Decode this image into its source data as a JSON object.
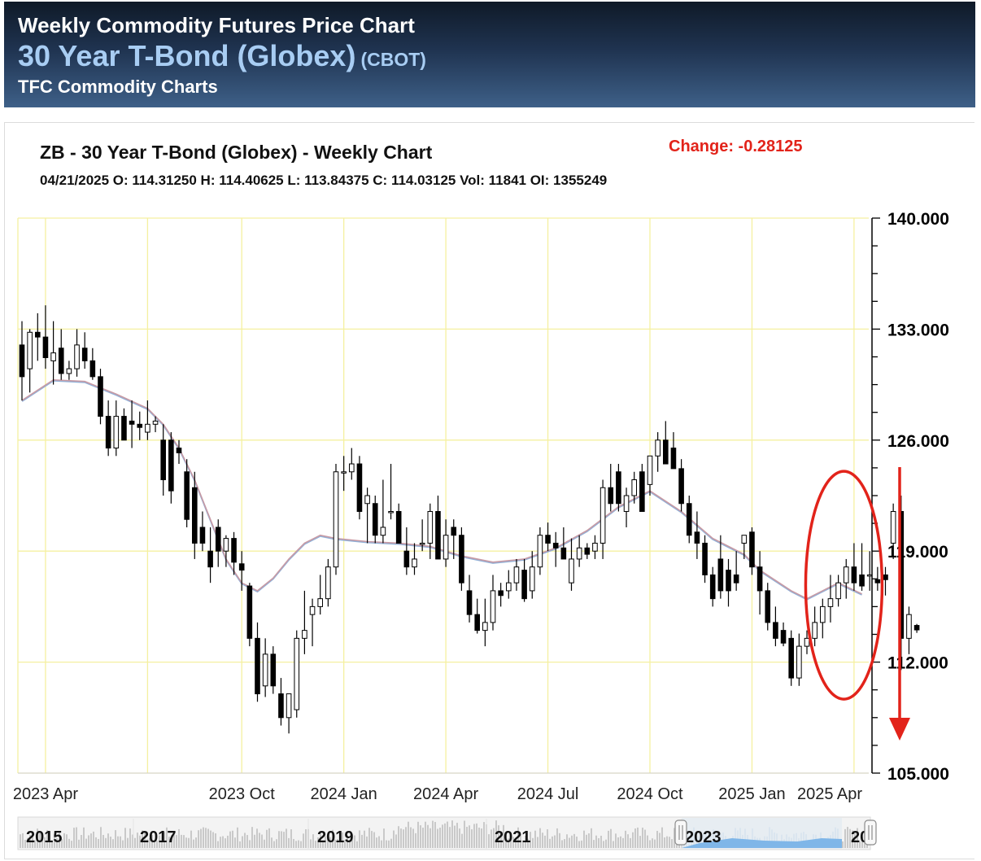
{
  "header": {
    "line1": "Weekly Commodity Futures Price Chart",
    "line2": "30 Year T-Bond (Globex)",
    "exchange": "(CBOT)",
    "line3": "TFC Commodity Charts"
  },
  "chart_title": "ZB - 30 Year T-Bond (Globex) - Weekly Chart",
  "ohlc_line": "04/21/2025 O: 114.31250 H: 114.40625 L: 113.84375 C: 114.03125 Vol: 11841 OI: 1355249",
  "change_label": "Change: -0.28125",
  "colors": {
    "grid": "#f5f0a0",
    "ma_blue": "#8fb0d8",
    "ma_pink": "#c89aa4",
    "annotation": "#e2231a",
    "bull": "#ffffff",
    "bear": "#000000"
  },
  "chart_data": {
    "type": "candlestick",
    "title": "ZB - 30 Year T-Bond (Globex) - Weekly Chart",
    "ylim": [
      105,
      140
    ],
    "y_ticks": [
      "140.000",
      "133.000",
      "126.000",
      "119.000",
      "112.000",
      "105.000"
    ],
    "y_tick_values": [
      140,
      133,
      126,
      119,
      112,
      105
    ],
    "x_ticks": [
      {
        "label": "2023 Apr",
        "week": 3
      },
      {
        "label": "2023 Oct",
        "week": 28
      },
      {
        "label": "2024 Jan",
        "week": 41
      },
      {
        "label": "2024 Apr",
        "week": 54
      },
      {
        "label": "2024 Jul",
        "week": 67
      },
      {
        "label": "2024 Oct",
        "week": 80
      },
      {
        "label": "2025 Jan",
        "week": 93
      },
      {
        "label": "2025 Apr",
        "week": 106
      }
    ],
    "extra_grid_weeks": [
      16
    ],
    "grid": true,
    "moving_average": [
      [
        0,
        128.5
      ],
      [
        4,
        129.8
      ],
      [
        8,
        129.7
      ],
      [
        12,
        128.9
      ],
      [
        16,
        128.0
      ],
      [
        18,
        127.0
      ],
      [
        20,
        125.5
      ],
      [
        22,
        123.5
      ],
      [
        24,
        121.0
      ],
      [
        26,
        118.5
      ],
      [
        28,
        117.0
      ],
      [
        30,
        116.5
      ],
      [
        32,
        117.3
      ],
      [
        34,
        118.5
      ],
      [
        36,
        119.5
      ],
      [
        38,
        120.0
      ],
      [
        40,
        119.8
      ],
      [
        44,
        119.6
      ],
      [
        48,
        119.5
      ],
      [
        52,
        119.3
      ],
      [
        56,
        118.7
      ],
      [
        60,
        118.3
      ],
      [
        64,
        118.5
      ],
      [
        68,
        119.2
      ],
      [
        72,
        120.3
      ],
      [
        76,
        121.8
      ],
      [
        80,
        122.8
      ],
      [
        84,
        121.5
      ],
      [
        88,
        119.8
      ],
      [
        92,
        118.8
      ],
      [
        94,
        117.8
      ],
      [
        98,
        116.5
      ],
      [
        100,
        116.0
      ],
      [
        102,
        116.5
      ],
      [
        104,
        117.0
      ],
      [
        107,
        116.3
      ]
    ],
    "candles": [
      [
        132,
        133.5,
        128.5,
        130
      ],
      [
        130.5,
        133,
        129,
        132.8
      ],
      [
        132.8,
        134,
        131,
        132.5
      ],
      [
        132.5,
        134.5,
        130.5,
        131.2
      ],
      [
        131,
        133.5,
        129.5,
        131.5
      ],
      [
        131.8,
        133,
        129.8,
        130.2
      ],
      [
        130.2,
        131,
        129.8,
        130.5
      ],
      [
        130.5,
        133,
        130,
        132
      ],
      [
        131.8,
        132.8,
        130.5,
        131
      ],
      [
        131,
        131.8,
        129.8,
        130
      ],
      [
        130,
        130.5,
        127,
        127.5
      ],
      [
        127.5,
        128.5,
        125,
        125.5
      ],
      [
        125.5,
        128.5,
        125,
        127.5
      ],
      [
        127.5,
        128,
        126,
        126
      ],
      [
        127.2,
        128.5,
        125.5,
        127
      ],
      [
        127,
        127.8,
        126,
        126.8
      ],
      [
        126.5,
        128.5,
        126,
        127
      ],
      [
        127,
        127.5,
        126.5,
        127.2
      ],
      [
        126,
        127,
        122.5,
        123.5
      ],
      [
        126,
        126.5,
        122,
        122.8
      ],
      [
        125.5,
        126,
        124.5,
        125.2
      ],
      [
        124,
        124.8,
        120.5,
        121
      ],
      [
        123,
        124,
        118.5,
        119.5
      ],
      [
        120.5,
        121.5,
        119,
        119.5
      ],
      [
        119,
        120.5,
        117,
        118
      ],
      [
        120.5,
        121,
        118,
        119
      ],
      [
        119,
        120,
        118,
        119.8
      ],
      [
        119.8,
        120.2,
        117.5,
        118.3
      ],
      [
        118.2,
        119,
        116.5,
        117.8
      ],
      [
        116.8,
        117,
        113,
        113.5
      ],
      [
        113.5,
        114.5,
        109.5,
        110
      ],
      [
        110.5,
        113.5,
        109.8,
        112.5
      ],
      [
        112.5,
        113,
        110,
        110.5
      ],
      [
        110,
        111,
        108,
        108.5
      ],
      [
        108.5,
        110,
        107.5,
        110
      ],
      [
        109,
        114,
        108.5,
        113.5
      ],
      [
        113.5,
        116.5,
        112.5,
        114
      ],
      [
        115,
        116,
        113,
        115.5
      ],
      [
        115.5,
        117.5,
        115,
        116
      ],
      [
        116,
        118.5,
        115.5,
        118
      ],
      [
        118,
        124.5,
        117.5,
        124
      ],
      [
        124,
        125,
        122.8,
        124
      ],
      [
        124,
        125.5,
        123.5,
        124.5
      ],
      [
        124.5,
        125,
        121,
        121.5
      ],
      [
        122,
        123,
        119.5,
        122.5
      ],
      [
        122,
        122.5,
        119.5,
        120
      ],
      [
        120,
        123.5,
        119.5,
        120.5
      ],
      [
        121.5,
        124.5,
        121,
        121.5
      ],
      [
        121.5,
        122,
        119.5,
        119.5
      ],
      [
        119,
        120.5,
        117.5,
        118
      ],
      [
        118,
        119.5,
        117.5,
        118.5
      ],
      [
        119.5,
        121,
        119,
        119.5
      ],
      [
        119.5,
        122,
        118.5,
        121.5
      ],
      [
        121.5,
        122.5,
        118.5,
        118.5
      ],
      [
        118.5,
        121,
        118,
        120
      ],
      [
        120.5,
        121,
        118.5,
        120
      ],
      [
        120,
        120.5,
        116.5,
        117
      ],
      [
        116.5,
        117.5,
        114.5,
        115
      ],
      [
        115,
        116,
        113.8,
        114
      ],
      [
        114,
        116,
        113,
        114.5
      ],
      [
        114.5,
        117.5,
        114,
        116.5
      ],
      [
        116.5,
        117,
        115.5,
        116.2
      ],
      [
        116.5,
        117.8,
        116,
        117
      ],
      [
        117,
        118.5,
        116.5,
        118
      ],
      [
        117.8,
        118.5,
        115.8,
        116
      ],
      [
        116.5,
        119,
        116,
        118
      ],
      [
        118,
        120.5,
        117.5,
        120
      ],
      [
        120,
        120.8,
        119,
        119.5
      ],
      [
        119.5,
        120.2,
        118,
        119.2
      ],
      [
        119.2,
        120.5,
        118.5,
        118.5
      ],
      [
        117,
        119.8,
        116.5,
        118.5
      ],
      [
        118.5,
        120,
        118,
        119.2
      ],
      [
        119.2,
        119.5,
        118.5,
        118.8
      ],
      [
        119,
        120,
        118.5,
        119.5
      ],
      [
        119.5,
        123.5,
        118.5,
        123
      ],
      [
        123,
        124.5,
        121.5,
        122
      ],
      [
        124,
        124.5,
        121.5,
        122
      ],
      [
        121.5,
        123,
        120.5,
        122.5
      ],
      [
        122.5,
        124,
        122,
        123.5
      ],
      [
        124,
        124.5,
        121.5,
        121.5
      ],
      [
        123.2,
        125,
        122.5,
        125
      ],
      [
        125,
        126.5,
        124,
        126
      ],
      [
        126,
        127.2,
        124.5,
        124.5
      ],
      [
        125.5,
        126.5,
        124.5,
        124.2
      ],
      [
        124.2,
        124.8,
        121.5,
        122
      ],
      [
        122,
        122.5,
        119.5,
        120
      ],
      [
        120.2,
        121.5,
        118.5,
        119.5
      ],
      [
        119.5,
        120,
        117,
        117.5
      ],
      [
        117.5,
        118,
        115.5,
        116
      ],
      [
        118.5,
        120,
        116,
        116.5
      ],
      [
        117.8,
        118.5,
        115.5,
        116.5
      ],
      [
        117.5,
        119,
        116.5,
        117
      ],
      [
        119.5,
        120,
        118.5,
        120
      ],
      [
        120.2,
        120.5,
        117.5,
        118
      ],
      [
        118,
        119,
        115,
        116.5
      ],
      [
        116.5,
        117,
        114,
        114.5
      ],
      [
        114.5,
        115.5,
        113,
        113.5
      ],
      [
        114,
        114.5,
        113,
        113.2
      ],
      [
        113.5,
        114,
        110.5,
        111
      ],
      [
        111,
        113.8,
        110.5,
        113
      ],
      [
        113,
        114,
        112.5,
        113.5
      ],
      [
        113.5,
        115.5,
        113,
        114.5
      ],
      [
        114.5,
        116,
        113.5,
        115.5
      ],
      [
        115.5,
        117.5,
        114.5,
        116
      ],
      [
        116,
        117.5,
        115.5,
        117
      ],
      [
        117,
        118.5,
        116,
        118
      ],
      [
        118,
        119.5,
        116.5,
        117
      ],
      [
        117.5,
        119.5,
        116.5,
        116.8
      ],
      [
        117.5,
        119,
        116.5,
        117.5
      ],
      [
        117.2,
        118,
        116.5,
        117
      ],
      [
        117.5,
        118,
        116.2,
        117.2
      ],
      [
        119.5,
        122,
        118.5,
        121.5
      ],
      [
        121.5,
        122.5,
        111.5,
        113.5
      ],
      [
        113.5,
        115.5,
        112.5,
        115
      ],
      [
        114.3125,
        114.40625,
        113.84375,
        114.03125
      ]
    ],
    "annotations": [
      {
        "type": "ellipse",
        "around_weeks": [
          102,
          107
        ]
      },
      {
        "type": "arrow",
        "direction": "down"
      }
    ]
  },
  "overview": {
    "labels": [
      "2015",
      "2017",
      "2019",
      "2021",
      "2023",
      "20"
    ]
  }
}
